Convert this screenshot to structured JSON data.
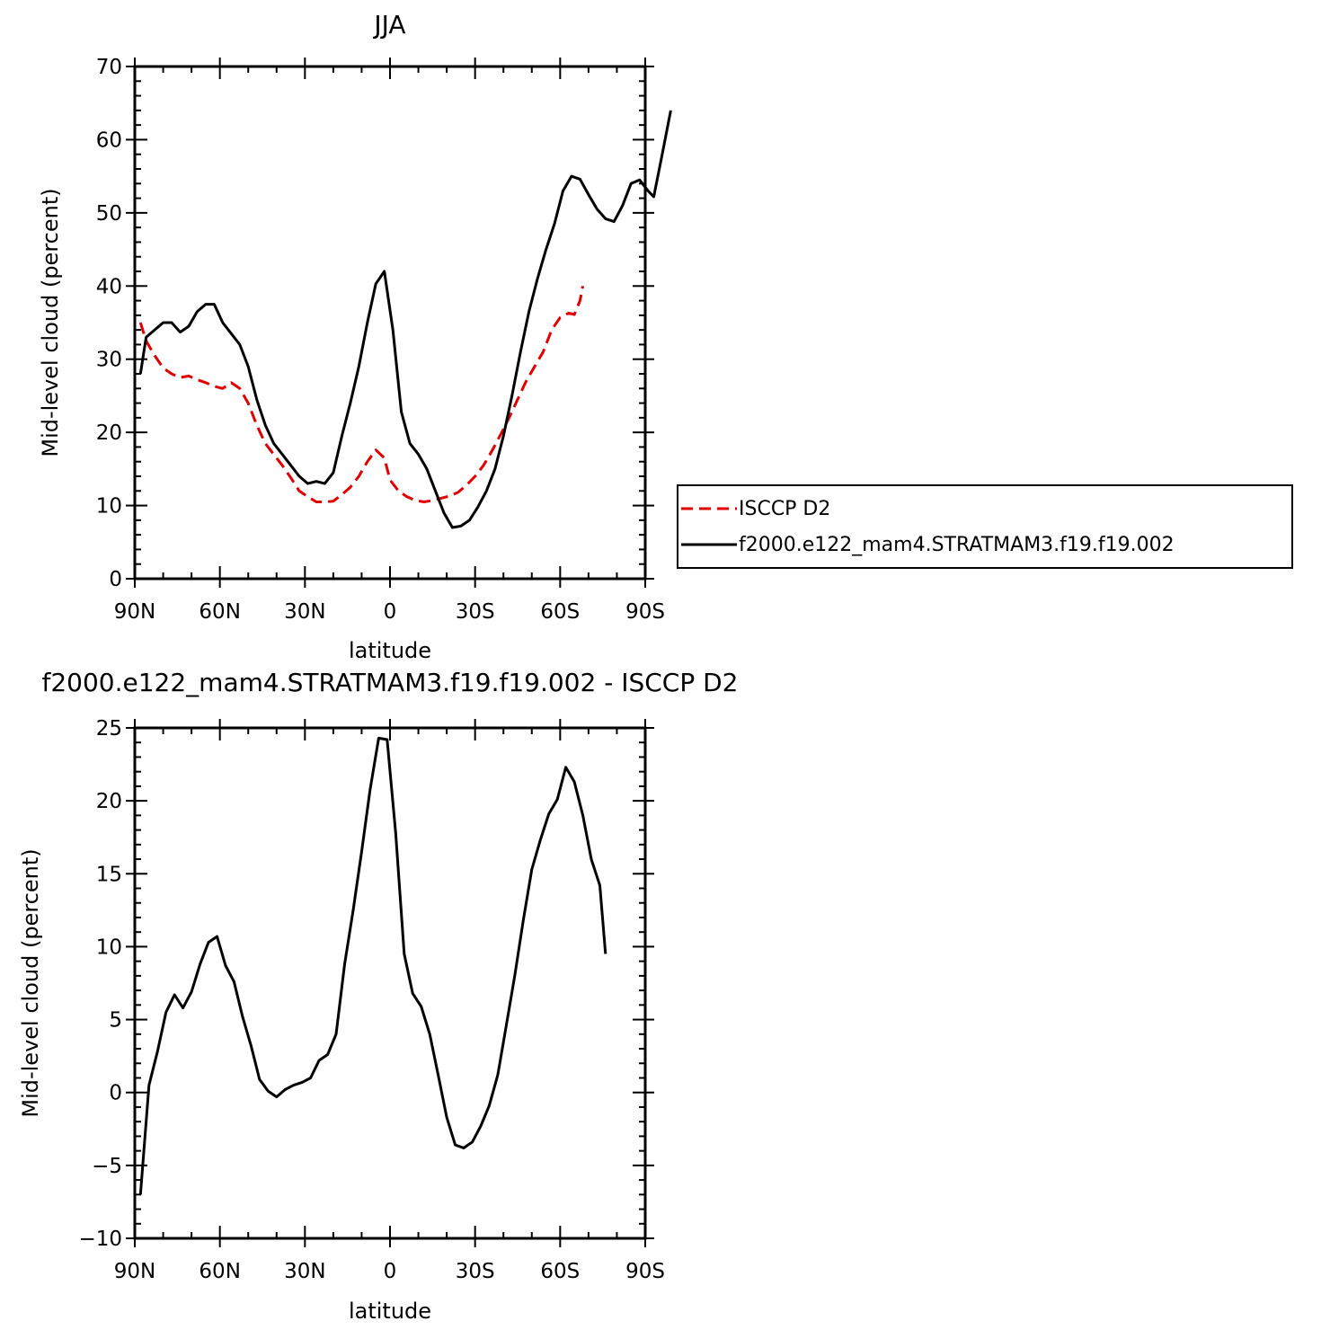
{
  "chart_data": [
    {
      "type": "line",
      "title": "JJA",
      "xlabel": "latitude",
      "ylabel": "Mid-level cloud (percent)",
      "xlim": [
        90,
        -90
      ],
      "ylim": [
        0,
        70
      ],
      "x_ticks": [
        {
          "value": 90,
          "label": "90N"
        },
        {
          "value": 60,
          "label": "60N"
        },
        {
          "value": 30,
          "label": "30N"
        },
        {
          "value": 0,
          "label": "0"
        },
        {
          "value": -30,
          "label": "30S"
        },
        {
          "value": -60,
          "label": "60S"
        },
        {
          "value": -90,
          "label": "90S"
        }
      ],
      "y_ticks": [
        0,
        10,
        20,
        30,
        40,
        50,
        60,
        70
      ],
      "legend": "right",
      "series": [
        {
          "name": "ISCCP D2",
          "color": "#e00000",
          "dash": "dashed",
          "points": [
            [
              88,
              35
            ],
            [
              86,
              32.5
            ],
            [
              83,
              30.5
            ],
            [
              80,
              28.8
            ],
            [
              77,
              28
            ],
            [
              74,
              27.5
            ],
            [
              71,
              27.7
            ],
            [
              68,
              27.2
            ],
            [
              65,
              26.8
            ],
            [
              62,
              26.3
            ],
            [
              59,
              26
            ],
            [
              56,
              26.8
            ],
            [
              53,
              26
            ],
            [
              50,
              24
            ],
            [
              47,
              21
            ],
            [
              44,
              18.5
            ],
            [
              41,
              17
            ],
            [
              38,
              15.5
            ],
            [
              35,
              13.8
            ],
            [
              32,
              12
            ],
            [
              29,
              11.2
            ],
            [
              26,
              10.5
            ],
            [
              23,
              10.5
            ],
            [
              20,
              10.6
            ],
            [
              17,
              11.5
            ],
            [
              14,
              12.5
            ],
            [
              11,
              14
            ],
            [
              8,
              16
            ],
            [
              5,
              17.6
            ],
            [
              2,
              16.5
            ],
            [
              0,
              13.5
            ],
            [
              -3,
              12
            ],
            [
              -6,
              11.2
            ],
            [
              -9,
              10.7
            ],
            [
              -12,
              10.5
            ],
            [
              -15,
              10.7
            ],
            [
              -18,
              11
            ],
            [
              -21,
              11.3
            ],
            [
              -24,
              11.8
            ],
            [
              -27,
              12.8
            ],
            [
              -30,
              14
            ],
            [
              -33,
              15.5
            ],
            [
              -36,
              17.5
            ],
            [
              -39,
              19.7
            ],
            [
              -42,
              22
            ],
            [
              -45,
              24.5
            ],
            [
              -48,
              27
            ],
            [
              -51,
              29
            ],
            [
              -54,
              31
            ],
            [
              -57,
              34
            ],
            [
              -60,
              35.7
            ],
            [
              -63,
              36.3
            ],
            [
              -65,
              36.1
            ],
            [
              -67,
              38
            ],
            [
              -68,
              40
            ]
          ]
        },
        {
          "name": "f2000.e122_mam4.STRATMAM3.f19.f19.002",
          "color": "#000000",
          "dash": "solid",
          "points": [
            [
              88,
              28
            ],
            [
              86,
              33
            ],
            [
              83,
              34
            ],
            [
              80,
              35
            ],
            [
              77,
              35
            ],
            [
              74,
              33.7
            ],
            [
              71,
              34.5
            ],
            [
              68,
              36.5
            ],
            [
              65,
              37.5
            ],
            [
              62,
              37.5
            ],
            [
              59,
              35
            ],
            [
              56,
              33.5
            ],
            [
              53,
              32
            ],
            [
              50,
              29
            ],
            [
              47,
              24.5
            ],
            [
              44,
              21
            ],
            [
              41,
              18.5
            ],
            [
              38,
              17
            ],
            [
              35,
              15.5
            ],
            [
              32,
              14
            ],
            [
              29,
              13
            ],
            [
              26,
              13.3
            ],
            [
              23,
              13
            ],
            [
              20,
              14.5
            ],
            [
              17,
              19.5
            ],
            [
              14,
              24
            ],
            [
              11,
              29
            ],
            [
              8,
              35
            ],
            [
              5,
              40.3
            ],
            [
              2,
              42
            ],
            [
              -1,
              34
            ],
            [
              -4,
              22.8
            ],
            [
              -7,
              18.5
            ],
            [
              -10,
              17
            ],
            [
              -13,
              15
            ],
            [
              -16,
              12
            ],
            [
              -19,
              9
            ],
            [
              -22,
              7
            ],
            [
              -25,
              7.2
            ],
            [
              -28,
              8
            ],
            [
              -31,
              9.8
            ],
            [
              -34,
              12
            ],
            [
              -37,
              15
            ],
            [
              -40,
              19.5
            ],
            [
              -43,
              25
            ],
            [
              -46,
              31
            ],
            [
              -49,
              36.5
            ],
            [
              -52,
              41
            ],
            [
              -55,
              45
            ],
            [
              -58,
              48.5
            ],
            [
              -61,
              53
            ],
            [
              -64,
              55
            ],
            [
              -67,
              54.6
            ],
            [
              -70,
              52.5
            ],
            [
              -73,
              50.5
            ],
            [
              -76,
              49.2
            ],
            [
              -79,
              48.8
            ],
            [
              -82,
              51
            ],
            [
              -85,
              54
            ],
            [
              -88,
              54.5
            ],
            [
              -91,
              53
            ],
            [
              -93,
              52.2
            ],
            [
              -96,
              58
            ],
            [
              -99,
              64
            ]
          ]
        }
      ]
    },
    {
      "type": "line",
      "title": "f2000.e122_mam4.STRATMAM3.f19.f19.002 - ISCCP D2",
      "xlabel": "latitude",
      "ylabel": "Mid-level cloud (percent)",
      "xlim": [
        90,
        -90
      ],
      "ylim": [
        -10,
        25
      ],
      "x_ticks": [
        {
          "value": 90,
          "label": "90N"
        },
        {
          "value": 60,
          "label": "60N"
        },
        {
          "value": 30,
          "label": "30N"
        },
        {
          "value": 0,
          "label": "0"
        },
        {
          "value": -30,
          "label": "30S"
        },
        {
          "value": -60,
          "label": "60S"
        },
        {
          "value": -90,
          "label": "90S"
        }
      ],
      "y_ticks": [
        -10,
        -5,
        0,
        5,
        10,
        15,
        20,
        25
      ],
      "series": [
        {
          "color": "#000000",
          "dash": "solid",
          "points": [
            [
              88,
              -7
            ],
            [
              85,
              0.5
            ],
            [
              82,
              2.8
            ],
            [
              79,
              5.5
            ],
            [
              76,
              6.7
            ],
            [
              73,
              5.8
            ],
            [
              70,
              6.9
            ],
            [
              67,
              8.8
            ],
            [
              64,
              10.3
            ],
            [
              61,
              10.7
            ],
            [
              58,
              8.7
            ],
            [
              55,
              7.6
            ],
            [
              52,
              5.2
            ],
            [
              49,
              3.2
            ],
            [
              46,
              0.9
            ],
            [
              43,
              0.1
            ],
            [
              40,
              -0.3
            ],
            [
              37,
              0.2
            ],
            [
              34,
              0.5
            ],
            [
              31,
              0.7
            ],
            [
              28,
              1
            ],
            [
              25,
              2.2
            ],
            [
              22,
              2.6
            ],
            [
              19,
              4
            ],
            [
              16,
              8.8
            ],
            [
              13,
              12.5
            ],
            [
              10,
              16.5
            ],
            [
              7,
              20.8
            ],
            [
              4,
              24.3
            ],
            [
              1,
              24.2
            ],
            [
              -2,
              17.8
            ],
            [
              -5,
              9.5
            ],
            [
              -8,
              6.8
            ],
            [
              -11,
              5.9
            ],
            [
              -14,
              4
            ],
            [
              -17,
              1.2
            ],
            [
              -20,
              -1.7
            ],
            [
              -23,
              -3.6
            ],
            [
              -26,
              -3.8
            ],
            [
              -29,
              -3.4
            ],
            [
              -32,
              -2.3
            ],
            [
              -35,
              -0.9
            ],
            [
              -38,
              1.2
            ],
            [
              -41,
              4.6
            ],
            [
              -44,
              8
            ],
            [
              -47,
              11.8
            ],
            [
              -50,
              15.3
            ],
            [
              -53,
              17.3
            ],
            [
              -56,
              19.1
            ],
            [
              -59,
              20.1
            ],
            [
              -62,
              22.3
            ],
            [
              -65,
              21.3
            ],
            [
              -68,
              19
            ],
            [
              -71,
              16
            ],
            [
              -74,
              14.2
            ],
            [
              -76,
              9.5
            ]
          ]
        }
      ]
    }
  ]
}
